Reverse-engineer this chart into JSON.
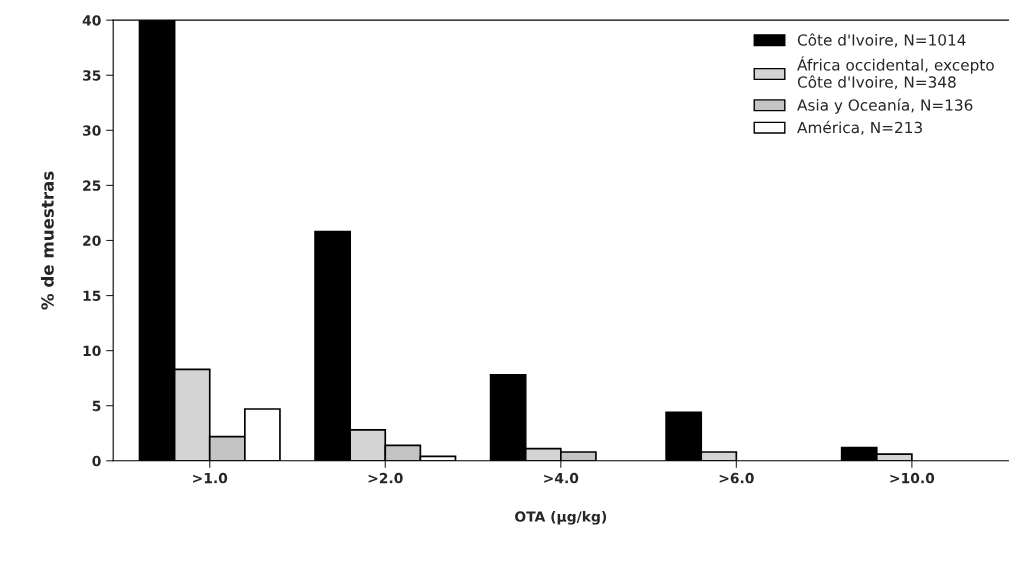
{
  "chart_data": {
    "type": "bar",
    "xlabel": "OTA (µg/kg)",
    "ylabel": "% de muestras",
    "categories": [
      ">1.0",
      ">2.0",
      ">4.0",
      ">6.0",
      ">10.0"
    ],
    "series": [
      {
        "name": "Côte d'Ivoire, N=1014",
        "color": "#000000",
        "values": [
          40,
          20.8,
          7.8,
          4.4,
          1.2
        ]
      },
      {
        "name": "África occidental, excepto\nCôte d'Ivoire, N=348",
        "color": "#d4d4d4",
        "values": [
          8.3,
          2.8,
          1.1,
          0.8,
          0.6
        ]
      },
      {
        "name": "Asia y Oceanía, N=136",
        "color": "#c4c4c4",
        "values": [
          2.2,
          1.4,
          0.8,
          null,
          null
        ]
      },
      {
        "name": "América, N=213",
        "color": "#ffffff",
        "values": [
          4.7,
          0.4,
          null,
          null,
          null
        ]
      }
    ],
    "ylim": [
      0,
      40
    ],
    "yticks": [
      0,
      5,
      10,
      15,
      20,
      25,
      30,
      35,
      40
    ],
    "grid": false,
    "legend": "top right"
  }
}
